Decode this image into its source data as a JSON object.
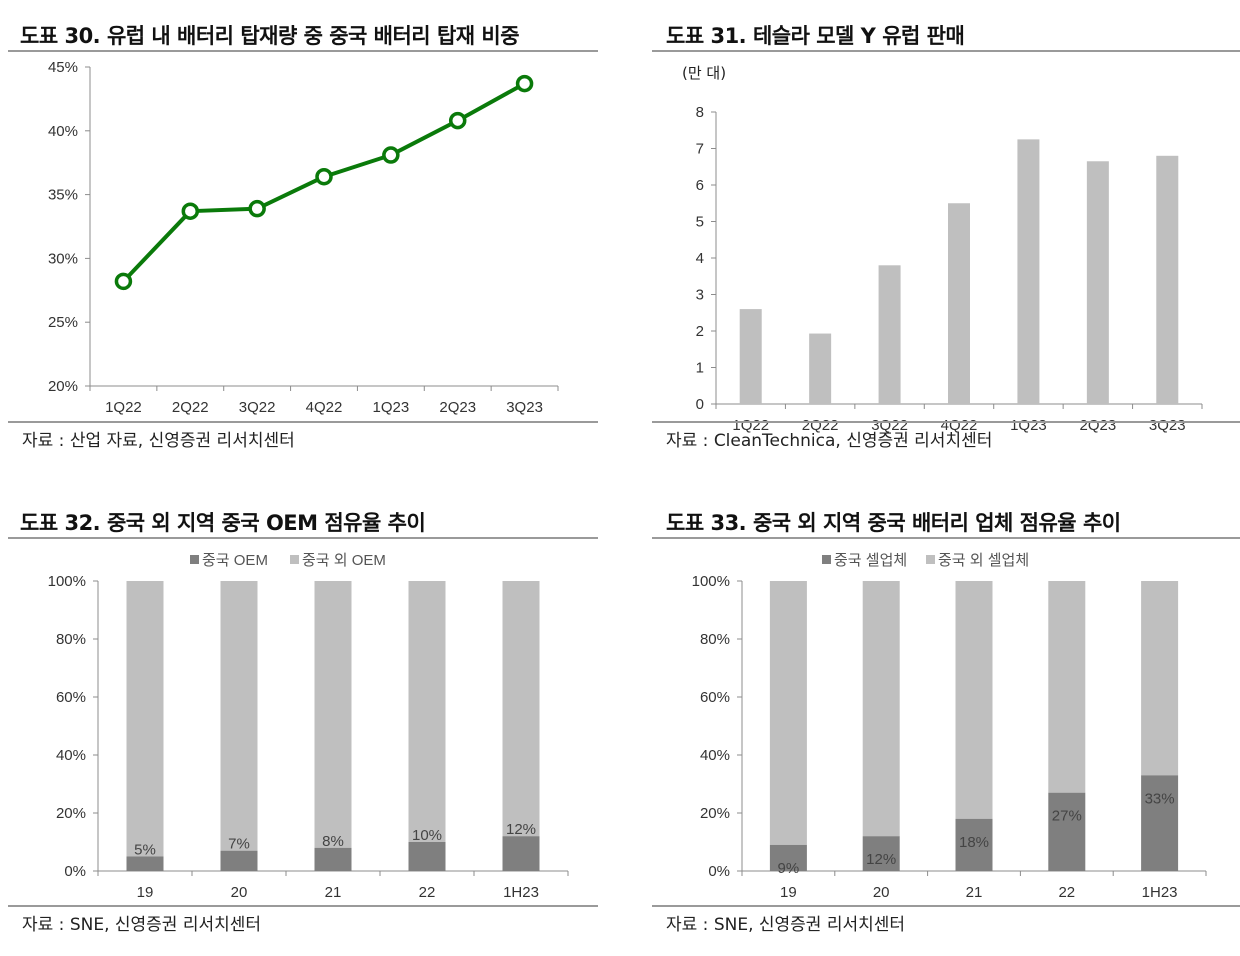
{
  "charts": [
    {
      "title": "도표 30. 유럽 내 배터리 탑재량 중 중국 배터리 탑재 비중",
      "source": "자료 : 산업 자료, 신영증권 리서치센터",
      "chart_data": {
        "type": "line",
        "categories": [
          "1Q22",
          "2Q22",
          "3Q22",
          "4Q22",
          "1Q23",
          "2Q23",
          "3Q23"
        ],
        "values": [
          28.2,
          33.7,
          33.9,
          36.4,
          38.1,
          40.8,
          43.7
        ],
        "ylim": [
          20,
          45
        ],
        "yticks": [
          "45%",
          "40%",
          "35%",
          "30%",
          "25%",
          "20%"
        ],
        "color": "#0a7a0a",
        "grid": false
      }
    },
    {
      "title": "도표 31. 테슬라 모델 Y 유럽 판매",
      "unit_label": "(만 대)",
      "source": "자료 : CleanTechnica, 신영증권 리서치센터",
      "chart_data": {
        "type": "bar",
        "categories": [
          "1Q22",
          "2Q22",
          "3Q22",
          "4Q22",
          "1Q23",
          "2Q23",
          "3Q23"
        ],
        "values": [
          2.6,
          1.93,
          3.8,
          5.5,
          7.25,
          6.65,
          6.8
        ],
        "ylim": [
          0,
          8
        ],
        "yticks": [
          "8",
          "7",
          "6",
          "5",
          "4",
          "3",
          "2",
          "1",
          "0"
        ],
        "color": "#bfbfbf",
        "grid": false
      }
    },
    {
      "title": "도표 32. 중국 외 지역 중국 OEM 점유율 추이",
      "source": "자료 : SNE, 신영증권 리서치센터",
      "chart_data": {
        "type": "bar",
        "stacked": true,
        "categories": [
          "19",
          "20",
          "21",
          "22",
          "1H23"
        ],
        "series": [
          {
            "name": "중국 OEM",
            "values": [
              5,
              7,
              8,
              10,
              12
            ],
            "labels": [
              "5%",
              "7%",
              "8%",
              "10%",
              "12%"
            ],
            "color": "#7f7f7f"
          },
          {
            "name": "중국 외 OEM",
            "values": [
              95,
              93,
              92,
              90,
              88
            ],
            "color": "#bfbfbf"
          }
        ],
        "ylim": [
          0,
          100
        ],
        "yticks": [
          "100%",
          "80%",
          "60%",
          "40%",
          "20%",
          "0%"
        ],
        "legend": "top",
        "grid": false
      }
    },
    {
      "title": "도표 33. 중국 외 지역 중국 배터리 업체 점유율 추이",
      "source": "자료 : SNE, 신영증권 리서치센터",
      "chart_data": {
        "type": "bar",
        "stacked": true,
        "categories": [
          "19",
          "20",
          "21",
          "22",
          "1H23"
        ],
        "series": [
          {
            "name": "중국 셀업체",
            "values": [
              9,
              12,
              18,
              27,
              33
            ],
            "labels": [
              "9%",
              "12%",
              "18%",
              "27%",
              "33%"
            ],
            "color": "#7f7f7f"
          },
          {
            "name": "중국 외 셀업체",
            "values": [
              91,
              88,
              82,
              73,
              67
            ],
            "color": "#bfbfbf"
          }
        ],
        "ylim": [
          0,
          100
        ],
        "yticks": [
          "100%",
          "80%",
          "60%",
          "40%",
          "20%",
          "0%"
        ],
        "legend": "top",
        "grid": false
      }
    }
  ]
}
